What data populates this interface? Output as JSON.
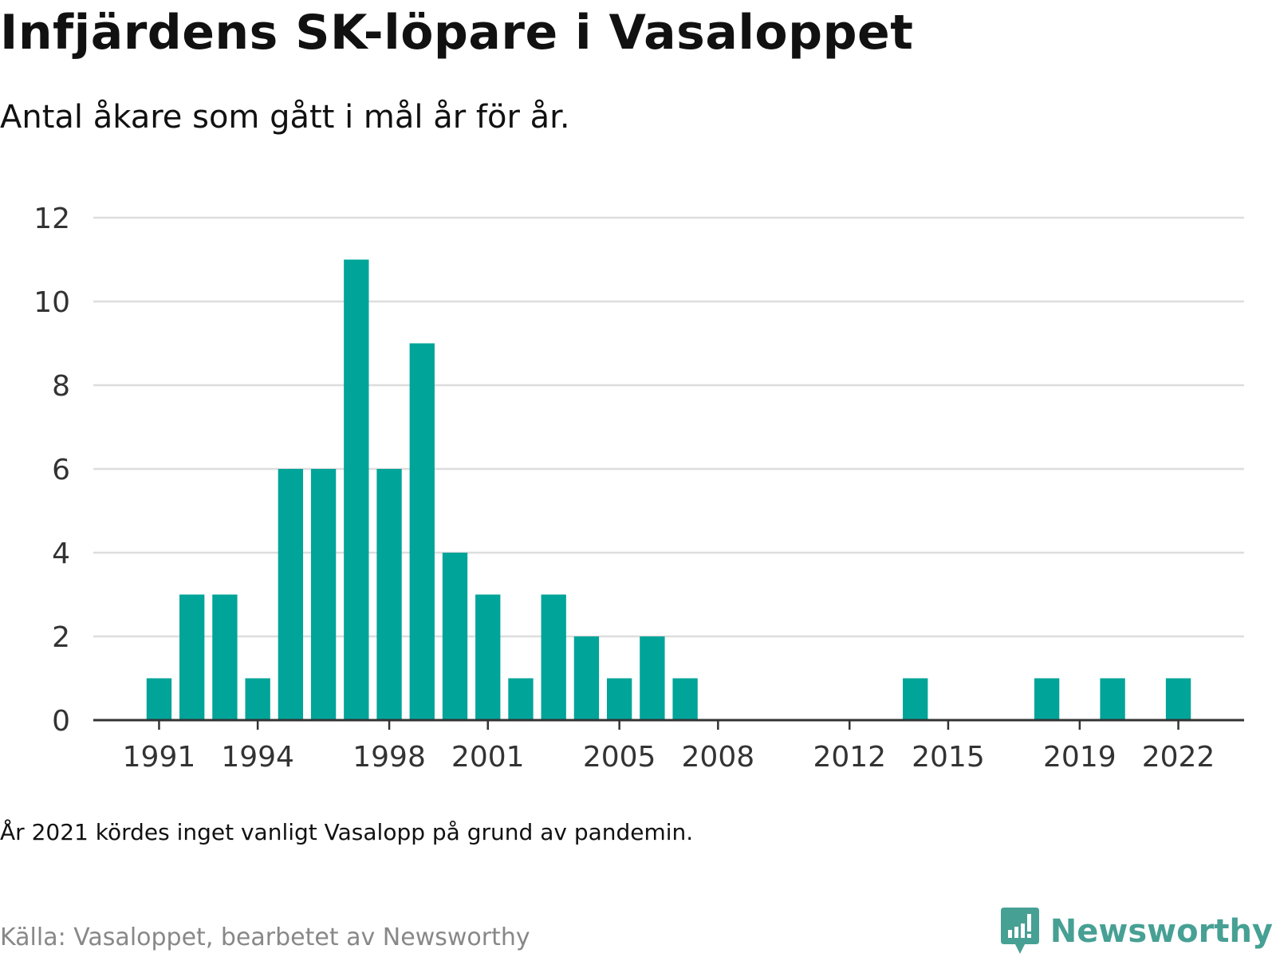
{
  "title": "Infjärdens SK-löpare i Vasaloppet",
  "subtitle": "Antal åkare som gått i mål år för år.",
  "note": "År 2021 kördes inget vanligt Vasalopp på grund av pandemin.",
  "source": "Källa: Vasaloppet, bearbetet av Newsworthy",
  "brand": {
    "name": "Newsworthy",
    "icon": "newsworthy-logo-icon",
    "color": "#47a094"
  },
  "colors": {
    "bar": "#00a499",
    "grid": "#dddddd",
    "axis": "#333333",
    "tick_text": "#333333"
  },
  "chart_data": {
    "type": "bar",
    "title": "Infjärdens SK-löpare i Vasaloppet",
    "subtitle": "Antal åkare som gått i mål år för år.",
    "x": [
      1991,
      1992,
      1993,
      1994,
      1995,
      1996,
      1997,
      1998,
      1999,
      2000,
      2001,
      2002,
      2003,
      2004,
      2005,
      2006,
      2007,
      2014,
      2018,
      2020,
      2022
    ],
    "values": [
      1,
      3,
      3,
      1,
      6,
      6,
      11,
      6,
      9,
      4,
      3,
      1,
      3,
      2,
      1,
      2,
      1,
      1,
      1,
      1,
      1
    ],
    "xlim": [
      1989,
      2024
    ],
    "xticks": [
      1991,
      1994,
      1998,
      2001,
      2005,
      2008,
      2012,
      2015,
      2019,
      2022
    ],
    "ylim": [
      0,
      12
    ],
    "yticks": [
      0,
      2,
      4,
      6,
      8,
      10,
      12
    ],
    "grid": true,
    "legend": "none"
  }
}
